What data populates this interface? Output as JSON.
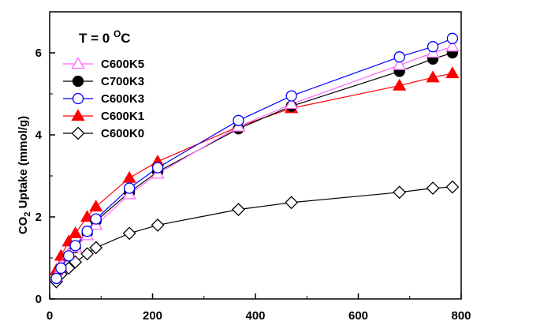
{
  "chart_data": {
    "type": "line",
    "title": "",
    "xlabel": "",
    "ylabel_main": "CO",
    "ylabel_sub": "2",
    "ylabel_rest": " Uptake (mmol/g)",
    "xlim": [
      0,
      800
    ],
    "ylim": [
      0,
      7
    ],
    "xticks": [
      0,
      200,
      400,
      600,
      800
    ],
    "yticks": [
      0,
      2,
      4,
      6
    ],
    "grid": false,
    "legend_position": "top-left",
    "annotation": {
      "prefix": "T = 0 ",
      "superscript": "O",
      "suffix": "C"
    },
    "series": [
      {
        "name": "C600K5",
        "color": "#ff66ff",
        "marker": "triangle-open",
        "x": [
          13,
          22,
          37,
          50,
          73,
          90,
          155,
          210,
          367,
          470,
          680,
          745,
          783
        ],
        "y": [
          0.55,
          0.8,
          1.1,
          1.25,
          1.55,
          1.8,
          2.55,
          3.05,
          4.2,
          4.75,
          5.7,
          6.0,
          6.15
        ]
      },
      {
        "name": "C700K3",
        "color": "#000000",
        "marker": "circle-filled",
        "x": [
          13,
          22,
          37,
          50,
          73,
          90,
          155,
          210,
          367,
          470,
          680,
          745,
          783
        ],
        "y": [
          0.5,
          0.75,
          1.05,
          1.25,
          1.6,
          1.9,
          2.6,
          3.1,
          4.15,
          4.7,
          5.55,
          5.85,
          6.0
        ]
      },
      {
        "name": "C600K3",
        "color": "#0000ff",
        "marker": "circle-open",
        "x": [
          13,
          22,
          37,
          50,
          73,
          90,
          155,
          210,
          367,
          470,
          680,
          745,
          783
        ],
        "y": [
          0.5,
          0.75,
          1.05,
          1.3,
          1.65,
          1.95,
          2.7,
          3.2,
          4.35,
          4.95,
          5.9,
          6.15,
          6.35
        ]
      },
      {
        "name": "C600K1",
        "color": "#ff0000",
        "marker": "triangle-filled",
        "x": [
          13,
          22,
          37,
          50,
          73,
          90,
          155,
          210,
          367,
          470,
          680,
          745,
          783
        ],
        "y": [
          0.7,
          1.05,
          1.4,
          1.6,
          2.0,
          2.25,
          2.95,
          3.35,
          4.2,
          4.65,
          5.2,
          5.4,
          5.5
        ]
      },
      {
        "name": "C600K0",
        "color": "#000000",
        "marker": "diamond-open",
        "x": [
          13,
          22,
          37,
          50,
          73,
          90,
          155,
          210,
          367,
          470,
          680,
          745,
          783
        ],
        "y": [
          0.42,
          0.6,
          0.75,
          0.9,
          1.1,
          1.25,
          1.6,
          1.8,
          2.18,
          2.35,
          2.6,
          2.7,
          2.73
        ]
      }
    ]
  }
}
